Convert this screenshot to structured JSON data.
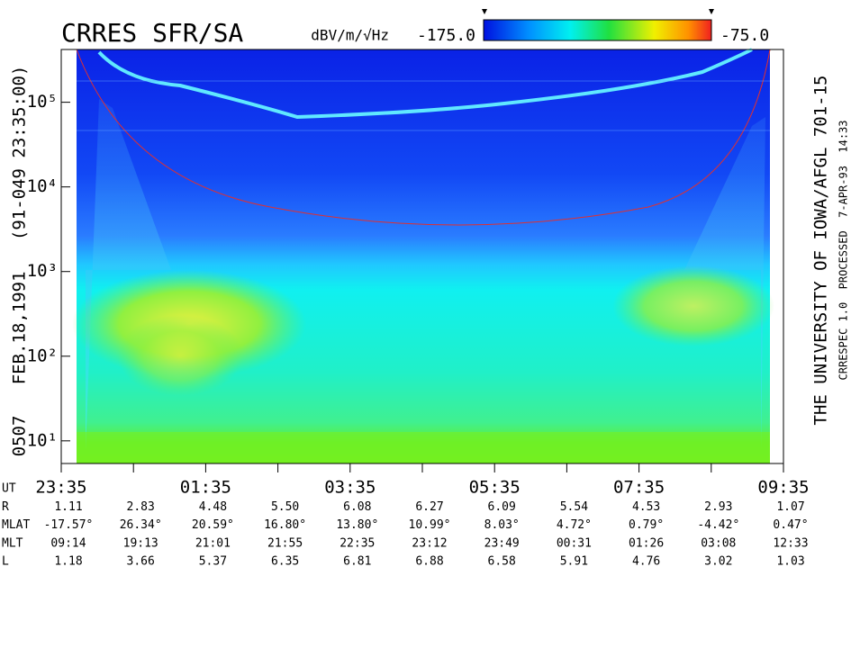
{
  "chart_data": {
    "type": "spectrogram",
    "title": "CRRES SFR/SA",
    "colorbar": {
      "label": "dBV/m/√Hz",
      "lim": [
        {
          "value": -175,
          "label": "-175.0"
        },
        {
          "value": -75,
          "label": "-75.0"
        }
      ]
    },
    "left_label": "0507   FEB.18,1991   (91-049 23:35:00)",
    "right_label": "THE UNIVERSITY OF IOWA/AFGL 701-15",
    "right_sublabel": "CRRESPEC 1.0  PROCESSED  7-APR-93  14:33",
    "log_y": true,
    "ylim": [
      5.4,
      420000
    ],
    "yticks": [
      {
        "value": 10,
        "label": "10¹"
      },
      {
        "value": 100,
        "label": "10²"
      },
      {
        "value": 1000,
        "label": "10³"
      },
      {
        "value": 10000,
        "label": "10⁴"
      },
      {
        "value": 100000,
        "label": "10⁵"
      }
    ],
    "categories": [
      "23:35",
      null,
      "01:35",
      null,
      "03:35",
      null,
      "05:35",
      null,
      "07:35",
      null,
      "09:35"
    ],
    "ephemeris": [
      {
        "label": "UT",
        "values": []
      },
      {
        "label": "R",
        "values": [
          "1.11",
          "2.83",
          "4.48",
          "5.50",
          "6.08",
          "6.27",
          "6.09",
          "5.54",
          "4.53",
          "2.93",
          "1.07"
        ]
      },
      {
        "label": "MLAT",
        "values": [
          "-17.57°",
          "26.34°",
          "20.59°",
          "16.80°",
          "13.80°",
          "10.99°",
          "8.03°",
          "4.72°",
          "0.79°",
          "-4.42°",
          "0.47°"
        ]
      },
      {
        "label": "MLT",
        "values": [
          "09:14",
          "19:13",
          "21:01",
          "21:55",
          "22:35",
          "23:12",
          "23:49",
          "00:31",
          "01:26",
          "03:08",
          "12:33"
        ]
      },
      {
        "label": "L",
        "values": [
          "1.18",
          "3.66",
          "5.37",
          "6.35",
          "6.81",
          "6.88",
          "6.58",
          "5.91",
          "4.76",
          "3.02",
          "1.03"
        ]
      }
    ]
  }
}
